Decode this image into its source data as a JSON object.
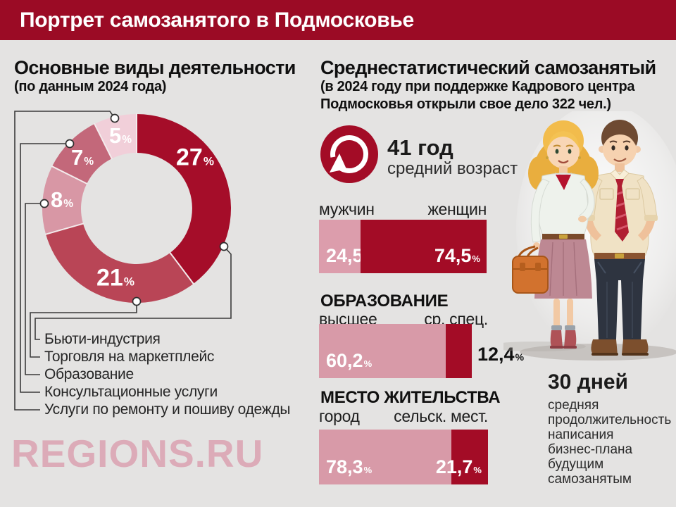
{
  "theme": {
    "header_bg": "#9B0B25",
    "page_bg": "#E4E3E2",
    "dark_red": "#A30C26",
    "watermark_pink": "#DCABB8",
    "connector": "#3B3B3B",
    "text": "#1B1B1B"
  },
  "header": {
    "title": "Портрет самозанятого в Подмосковье"
  },
  "left": {
    "title": "Основные виды деятельности",
    "subtitle": "(по данным 2024 года)",
    "watermark": "REGIONS.RU"
  },
  "right": {
    "title": "Среднестатистический самозанятый",
    "subtitle_line1": "(в 2024 году при поддержке Кадрового центра",
    "subtitle_line2": "Подмосковья открыли свое дело 322 чел.)",
    "age": {
      "icon": "refresh-arrow-icon",
      "value": "41 год",
      "label": "средний возраст"
    },
    "days": {
      "value": "30 дней",
      "lines": [
        "средняя",
        "продолжительность",
        "написания",
        "бизнес-плана",
        "будущим",
        "самозанятым"
      ]
    }
  },
  "chart_data": [
    {
      "type": "pie",
      "variant": "donut",
      "title": "Основные виды деятельности",
      "subtitle": "(по данным 2024 года)",
      "unit": "%",
      "labels": [
        "Бьюти-индустрия",
        "Торговля на маркетплейс",
        "Образование",
        "Консультационные услуги",
        "Услуги по ремонту и пошиву одежды"
      ],
      "values": [
        27,
        21,
        8,
        7,
        5
      ],
      "display_values": [
        "27",
        "21",
        "8",
        "7",
        "5"
      ],
      "colors": [
        "#A50D29",
        "#B94556",
        "#D897A5",
        "#C3687A",
        "#F1CFD9"
      ]
    },
    {
      "type": "bar",
      "variant": "stacked-horizontal",
      "categories": [
        "мужчин",
        "женщин"
      ],
      "values": [
        24.5,
        74.5
      ],
      "display_values": [
        "24,5",
        "74,5"
      ],
      "unit": "%",
      "colors": [
        "#DC9DAC",
        "#A30C26"
      ]
    },
    {
      "type": "bar",
      "variant": "stacked-horizontal",
      "title": "ОБРАЗОВАНИЕ",
      "categories": [
        "высшее",
        "ср. спец."
      ],
      "values": [
        60.2,
        12.4
      ],
      "display_values": [
        "60,2",
        "12,4"
      ],
      "unit": "%",
      "colors": [
        "#D89AA8",
        "#A30C26"
      ]
    },
    {
      "type": "bar",
      "variant": "stacked-horizontal",
      "title": "МЕСТО ЖИТЕЛЬСТВА",
      "categories": [
        "город",
        "сельск. мест."
      ],
      "values": [
        78.3,
        21.7
      ],
      "display_values": [
        "78,3",
        "21,7"
      ],
      "unit": "%",
      "colors": [
        "#D89AA8",
        "#A30C26"
      ]
    }
  ]
}
